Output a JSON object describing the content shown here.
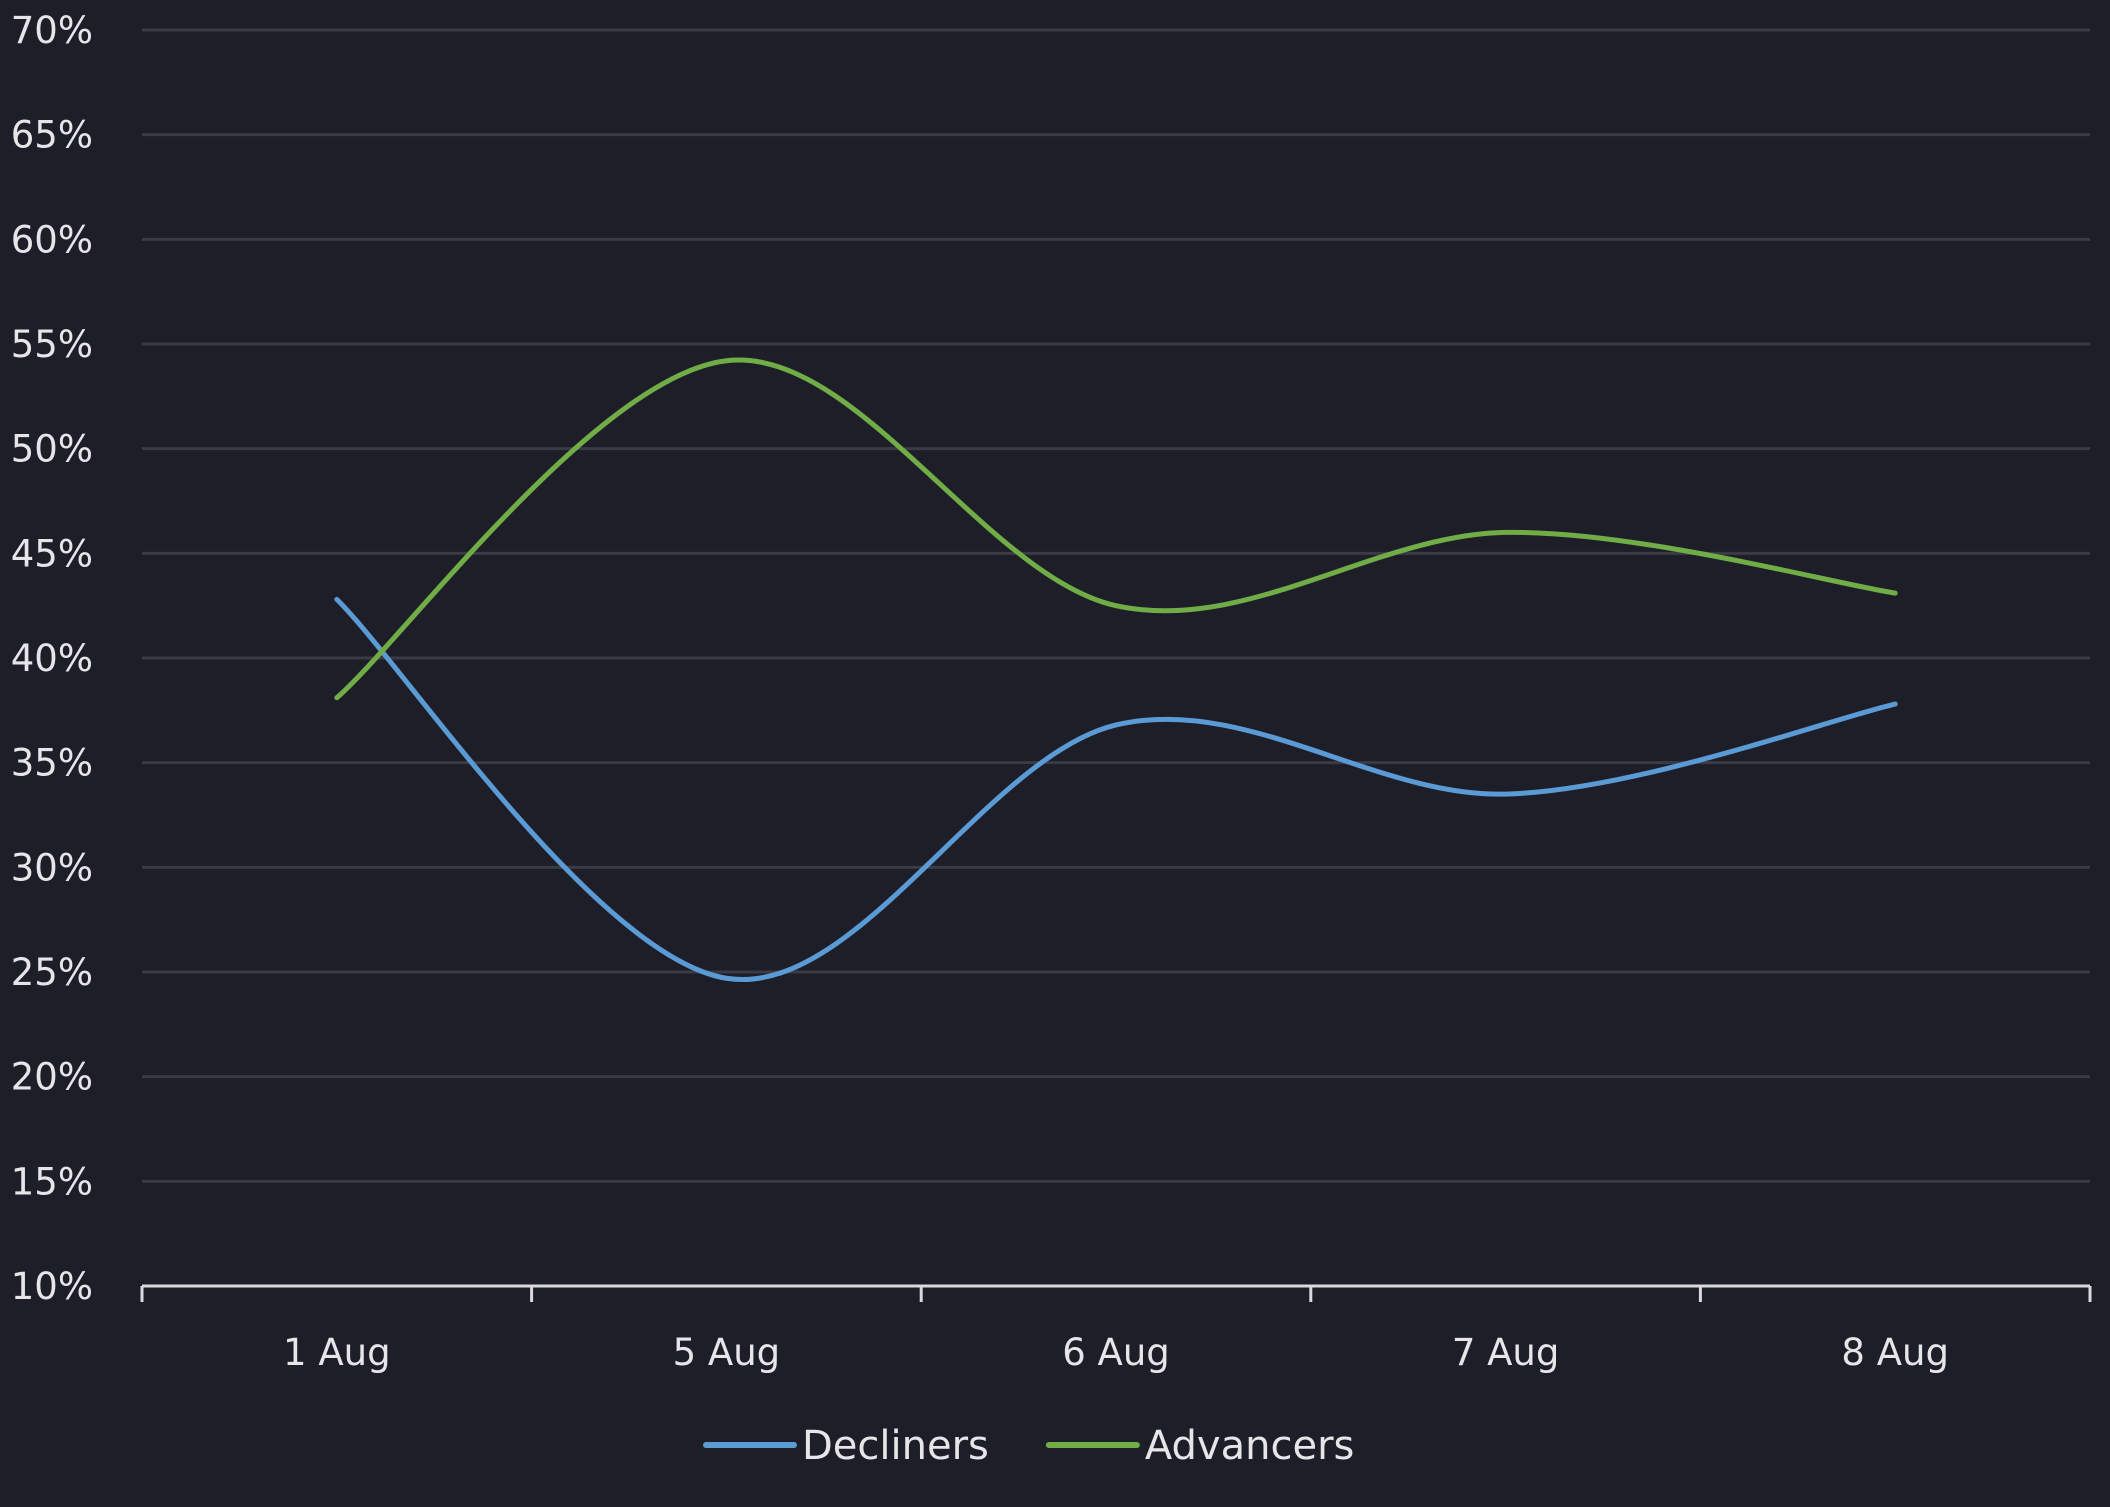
{
  "chart_data": {
    "type": "line",
    "title": "",
    "xlabel": "",
    "ylabel": "",
    "categories": [
      "1 Aug",
      "5 Aug",
      "6 Aug",
      "7 Aug",
      "8 Aug"
    ],
    "ylim": [
      10,
      70
    ],
    "y_ticks": [
      "10%",
      "15%",
      "20%",
      "25%",
      "30%",
      "35%",
      "40%",
      "45%",
      "50%",
      "55%",
      "60%",
      "65%",
      "70%"
    ],
    "y_unit": "%",
    "smooth": true,
    "grid": true,
    "legend_position": "bottom-center",
    "series": [
      {
        "name": "Decliners",
        "color": "#5b9bd5",
        "values": [
          42.8,
          24.7,
          36.8,
          33.5,
          37.8
        ]
      },
      {
        "name": "Advancers",
        "color": "#70ad47",
        "values": [
          38.1,
          54.2,
          42.5,
          46.0,
          43.1
        ]
      }
    ]
  }
}
